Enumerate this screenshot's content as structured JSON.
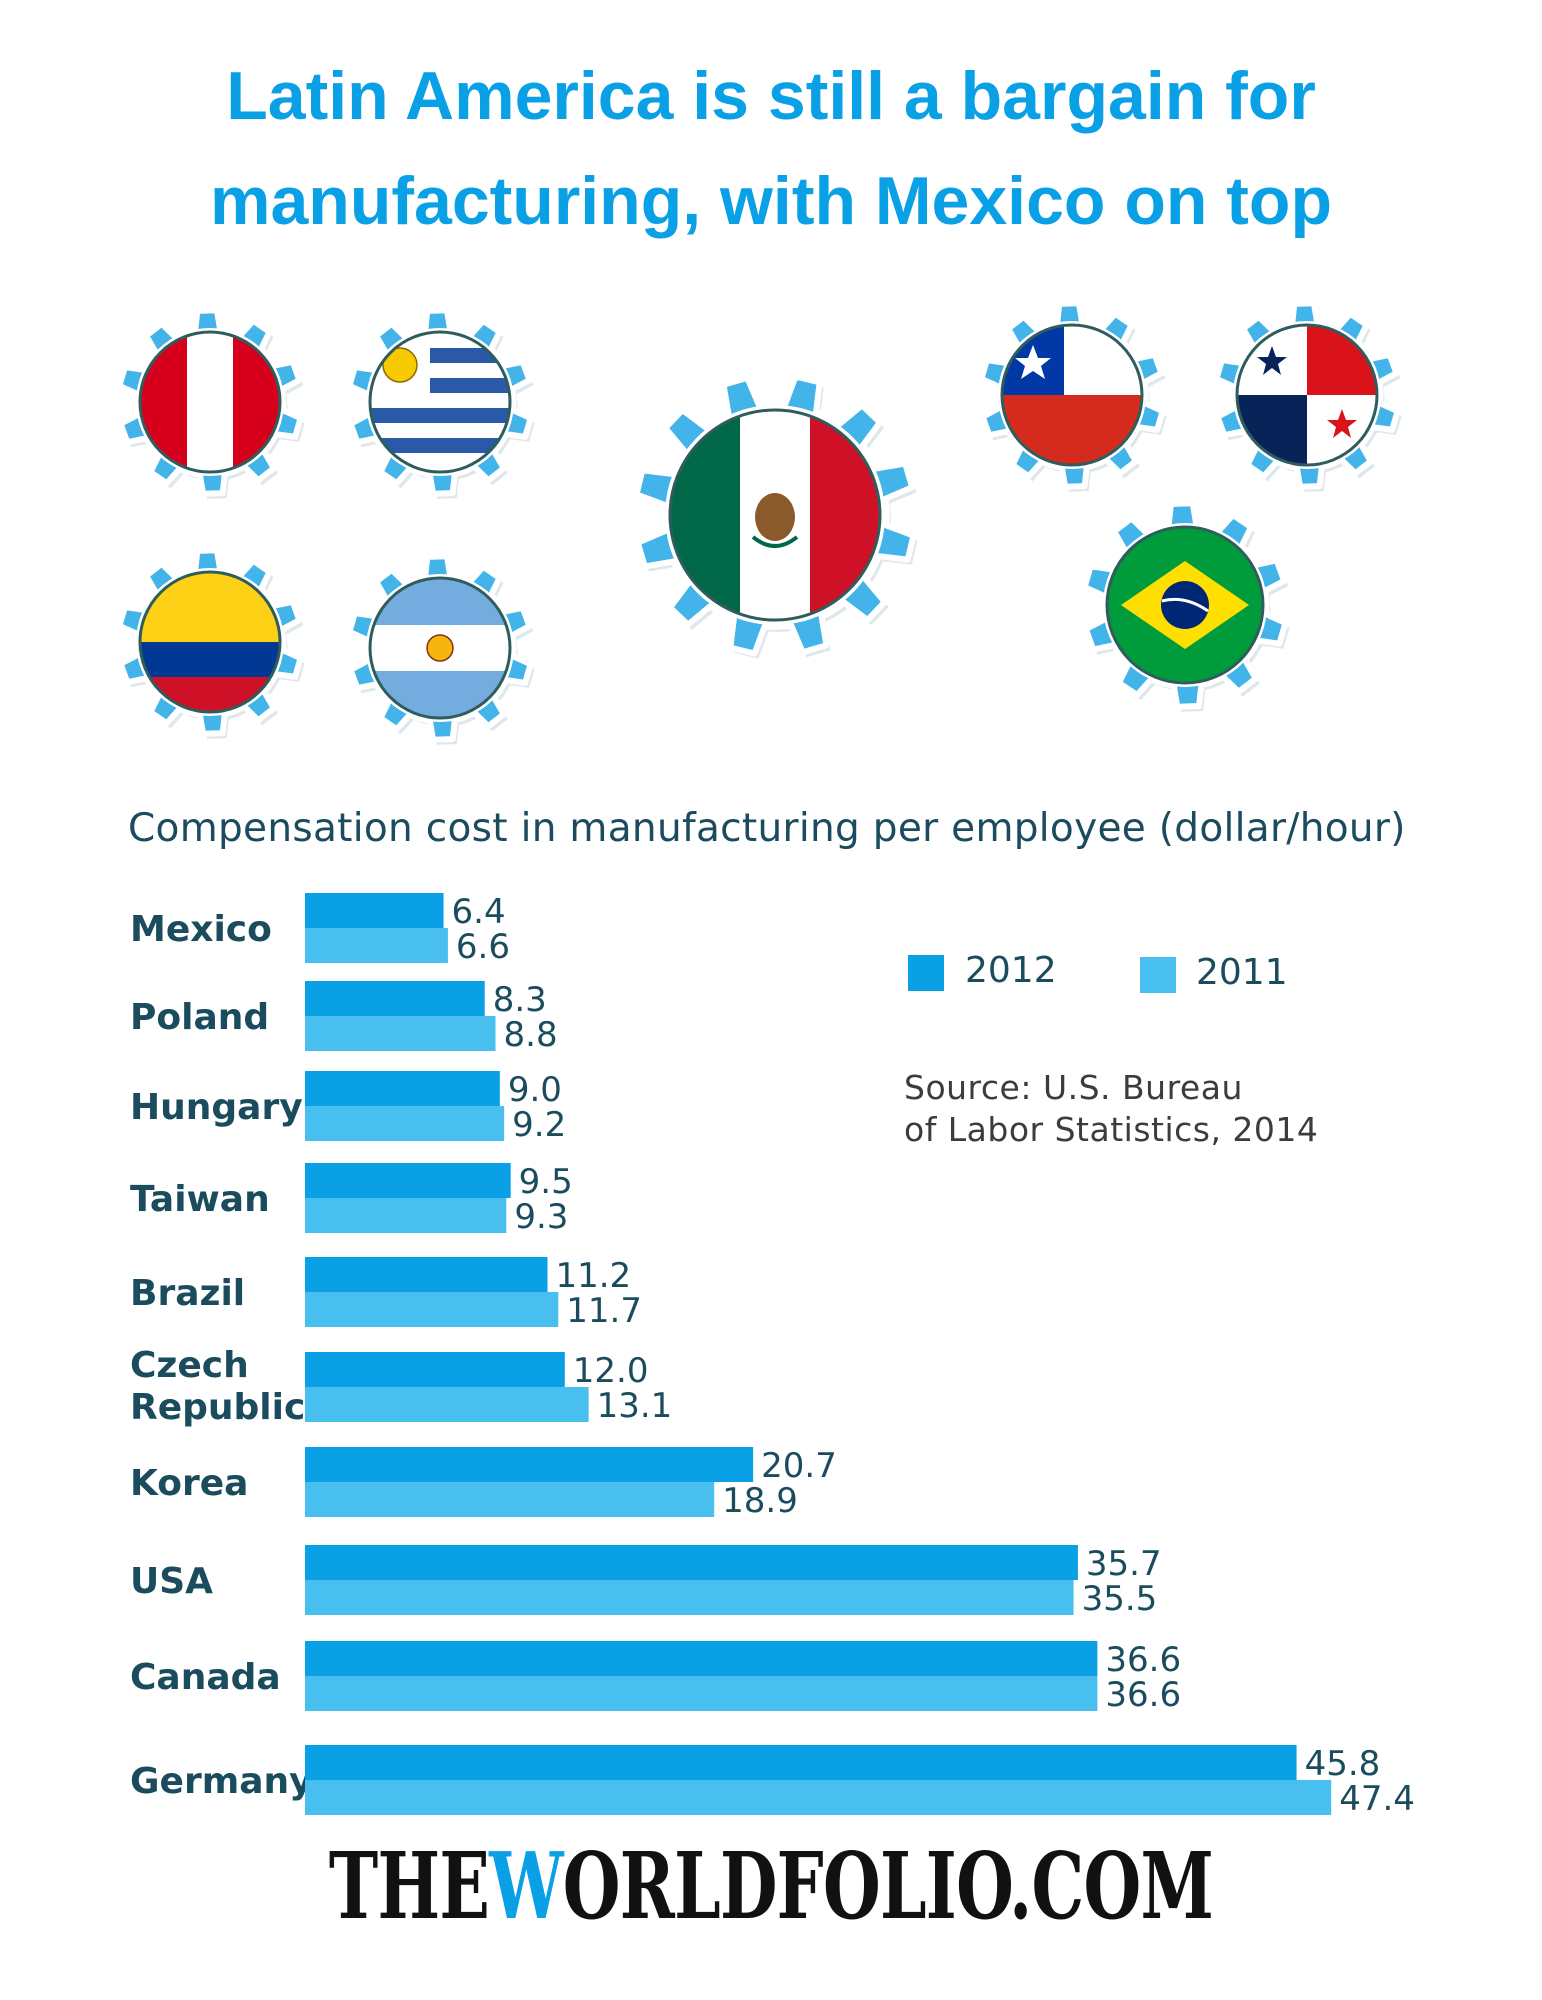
{
  "title_line1": "Latin America is still a bargain for",
  "title_line2": "manufacturing, with Mexico on top",
  "subtitle": "Compensation cost in manufacturing per employee (dollar/hour)",
  "flags": [
    "peru",
    "uruguay",
    "mexico",
    "chile",
    "panama",
    "colombia",
    "argentina",
    "brazil"
  ],
  "legend": {
    "series_2012": "2012",
    "series_2011": "2011"
  },
  "source": {
    "line1": "Source: U.S. Bureau",
    "line2": "of Labor Statistics, 2014"
  },
  "brand": {
    "before": "THE",
    "highlight": "W",
    "after": "ORLDFOLIO.COM"
  },
  "colors": {
    "title": "#0aa0e6",
    "series_2012": "#0aa0e6",
    "series_2011": "#48bfef",
    "gear": "#42b4ea",
    "label_text": "#1b4c5e"
  },
  "chart_data": {
    "type": "bar",
    "orientation": "horizontal",
    "title": "Compensation cost in manufacturing per employee (dollar/hour)",
    "categories": [
      [
        "Mexico"
      ],
      [
        "Poland"
      ],
      [
        "Hungary"
      ],
      [
        "Taiwan"
      ],
      [
        "Brazil"
      ],
      [
        "Czech",
        "Republic"
      ],
      [
        "Korea"
      ],
      [
        "USA"
      ],
      [
        "Canada"
      ],
      [
        "Germany"
      ]
    ],
    "series": [
      {
        "name": "2012",
        "values": [
          6.4,
          8.3,
          9.0,
          9.5,
          11.2,
          12.0,
          20.7,
          35.7,
          36.6,
          45.8
        ],
        "labels": [
          "6.4",
          "8.3",
          "9.0",
          "9.5",
          "11.2",
          "12.0",
          "20.7",
          "35.7",
          "36.6",
          "45.8"
        ]
      },
      {
        "name": "2011",
        "values": [
          6.6,
          8.8,
          9.2,
          9.3,
          11.7,
          13.1,
          18.9,
          35.5,
          36.6,
          47.4
        ],
        "labels": [
          "6.6",
          "8.8",
          "9.2",
          "9.3",
          "11.7",
          "13.1",
          "18.9",
          "35.5",
          "36.6",
          "47.4"
        ]
      }
    ],
    "legend_position": "top-right",
    "grid": false
  }
}
